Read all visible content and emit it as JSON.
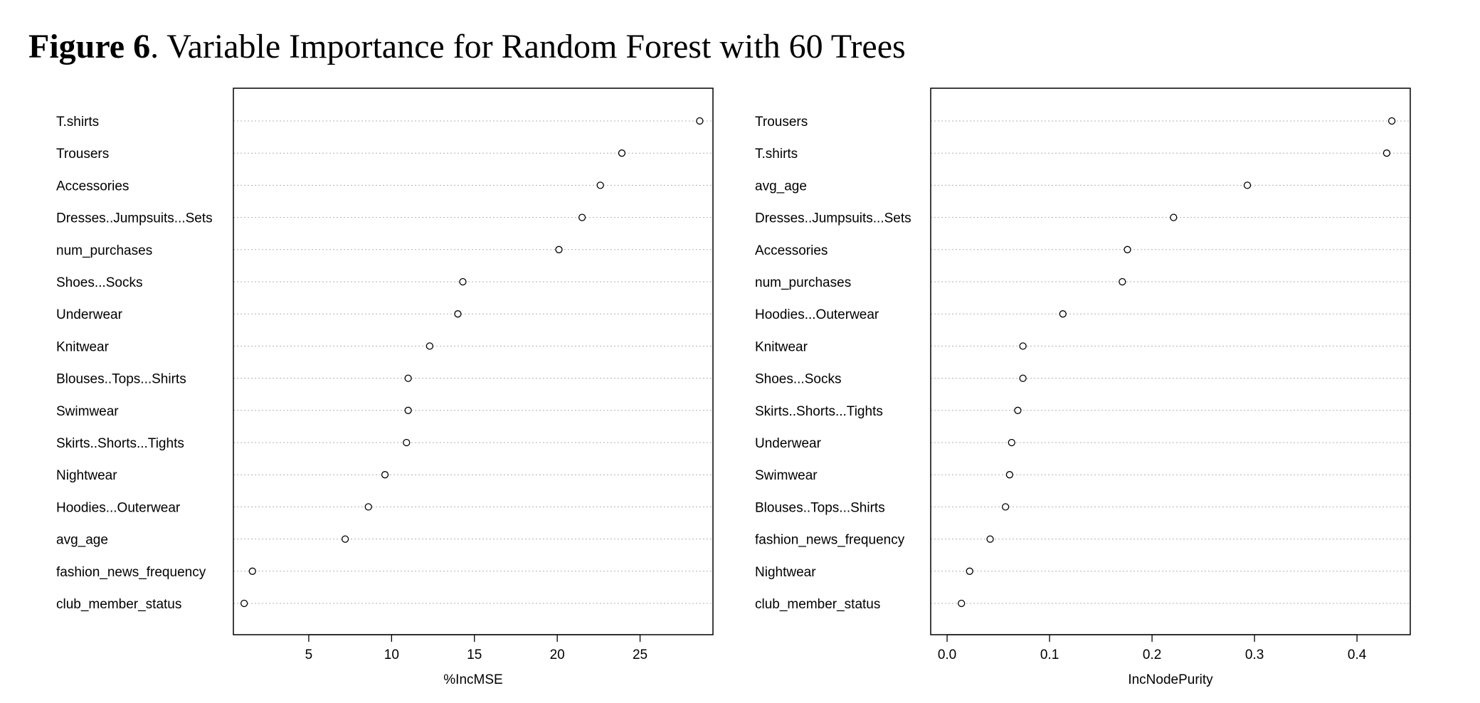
{
  "figure": {
    "label": "Figure 6",
    "caption": ". Variable Importance for Random Forest with 60 Trees"
  },
  "chart_data": [
    {
      "type": "scatter",
      "title": "",
      "xlabel": "%IncMSE",
      "ylabel": "",
      "xlim": [
        0.45,
        29.4
      ],
      "xticks": [
        "5",
        "10",
        "15",
        "20",
        "25"
      ],
      "grid": "dotted horizontal",
      "categories": [
        "T.shirts",
        "Trousers",
        "Accessories",
        "Dresses..Jumpsuits...Sets",
        "num_purchases",
        "Shoes...Socks",
        "Underwear",
        "Knitwear",
        "Blouses..Tops...Shirts",
        "Swimwear",
        "Skirts..Shorts...Tights",
        "Nightwear",
        "Hoodies...Outerwear",
        "avg_age",
        "fashion_news_frequency",
        "club_member_status"
      ],
      "values": [
        28.6,
        23.9,
        22.6,
        21.5,
        20.1,
        14.3,
        14.0,
        12.3,
        11.0,
        11.0,
        10.9,
        9.6,
        8.6,
        7.2,
        1.6,
        1.1
      ]
    },
    {
      "type": "scatter",
      "title": "",
      "xlabel": "IncNodePurity",
      "ylabel": "",
      "xlim": [
        -0.016,
        0.452
      ],
      "xticks": [
        "0.0",
        "0.1",
        "0.2",
        "0.3",
        "0.4"
      ],
      "grid": "dotted horizontal",
      "categories": [
        "Trousers",
        "T.shirts",
        "avg_age",
        "Dresses..Jumpsuits...Sets",
        "Accessories",
        "num_purchases",
        "Hoodies...Outerwear",
        "Knitwear",
        "Shoes...Socks",
        "Skirts..Shorts...Tights",
        "Underwear",
        "Swimwear",
        "Blouses..Tops...Shirts",
        "fashion_news_frequency",
        "Nightwear",
        "club_member_status"
      ],
      "values": [
        0.434,
        0.429,
        0.293,
        0.221,
        0.176,
        0.171,
        0.113,
        0.074,
        0.074,
        0.069,
        0.063,
        0.061,
        0.057,
        0.042,
        0.022,
        0.014
      ]
    }
  ]
}
